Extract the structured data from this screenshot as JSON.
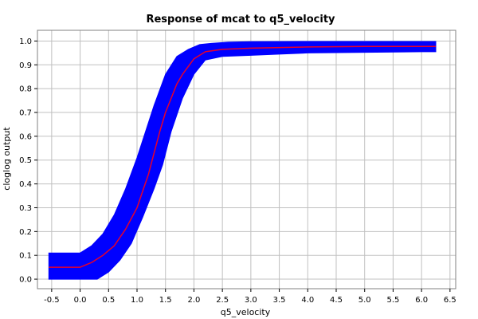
{
  "chart_data": {
    "type": "line",
    "title": "Response of mcat to q5_velocity",
    "xlabel": "q5_velocity",
    "ylabel": "cloglog output",
    "xlim": [
      -0.75,
      6.6
    ],
    "ylim": [
      -0.04,
      1.045
    ],
    "xticks": [
      "-0.5",
      "0.0",
      "0.5",
      "1.0",
      "1.5",
      "2.0",
      "2.5",
      "3.0",
      "3.5",
      "4.0",
      "4.5",
      "5.0",
      "5.5",
      "6.0",
      "6.5"
    ],
    "yticks": [
      "0.0",
      "0.1",
      "0.2",
      "0.3",
      "0.4",
      "0.5",
      "0.6",
      "0.7",
      "0.8",
      "0.9",
      "1.0"
    ],
    "grid": true,
    "colors": {
      "band": "#0000ff",
      "line": "#e8002a",
      "grid": "#c0c0c0",
      "background": "#ffffff"
    },
    "series": [
      {
        "role": "mean",
        "x": [
          -0.55,
          0.0,
          0.2,
          0.4,
          0.6,
          0.8,
          1.0,
          1.1,
          1.2,
          1.3,
          1.4,
          1.5,
          1.6,
          1.7,
          1.8,
          2.0,
          2.2,
          2.5,
          3.0,
          4.0,
          5.0,
          6.0,
          6.25
        ],
        "y": [
          0.05,
          0.05,
          0.07,
          0.1,
          0.14,
          0.21,
          0.3,
          0.37,
          0.44,
          0.53,
          0.62,
          0.7,
          0.76,
          0.82,
          0.86,
          0.925,
          0.955,
          0.965,
          0.97,
          0.975,
          0.977,
          0.977,
          0.977
        ]
      },
      {
        "role": "band-lower",
        "x": [
          -0.55,
          0.3,
          0.5,
          0.7,
          0.9,
          1.1,
          1.3,
          1.45,
          1.6,
          1.8,
          2.0,
          2.2,
          2.5,
          3.0,
          3.5,
          4.0,
          6.0,
          6.25
        ],
        "y": [
          0.0,
          0.0,
          0.03,
          0.08,
          0.15,
          0.26,
          0.38,
          0.48,
          0.62,
          0.76,
          0.86,
          0.92,
          0.935,
          0.94,
          0.945,
          0.95,
          0.955,
          0.955
        ]
      },
      {
        "role": "band-upper",
        "x": [
          -0.55,
          0.0,
          0.2,
          0.4,
          0.6,
          0.8,
          1.0,
          1.15,
          1.3,
          1.5,
          1.7,
          1.9,
          2.1,
          2.3,
          2.6,
          3.0,
          4.0,
          6.25
        ],
        "y": [
          0.11,
          0.11,
          0.14,
          0.19,
          0.27,
          0.38,
          0.51,
          0.62,
          0.73,
          0.86,
          0.935,
          0.965,
          0.985,
          0.99,
          0.995,
          0.997,
          0.998,
          0.998
        ]
      }
    ]
  }
}
